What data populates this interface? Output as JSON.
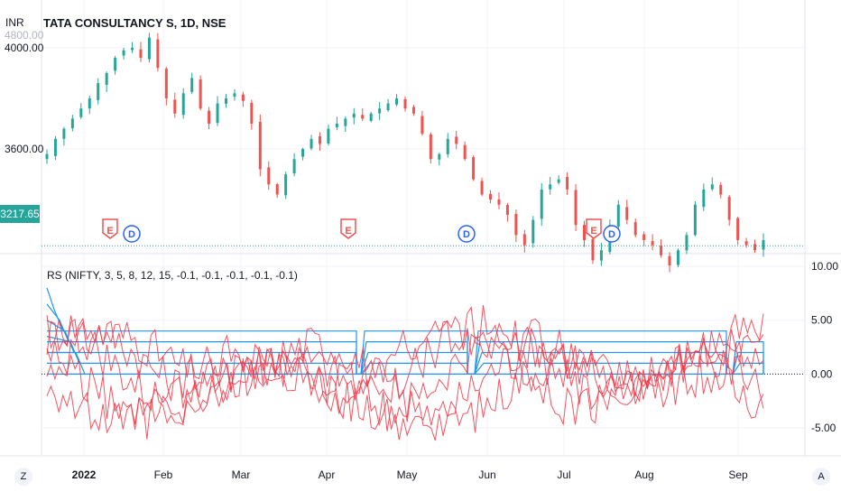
{
  "header": {
    "title": "TATA CONSULTANCY S, 1D, NSE",
    "currency": "INR",
    "last_price_tag": "3217.65",
    "indicator_title": "RS (NIFTY, 3, 5, 8, 12, 15, -0.1, -0.1, -0.1, -0.1, -0.1)"
  },
  "footer": {
    "left_button": "Z",
    "right_button": "A"
  },
  "colors": {
    "up": "#26a69a",
    "down": "#ef5350",
    "blue": "#2196f3",
    "red_line": "#f23645",
    "grid": "#f0f3fa",
    "text": "#131722",
    "sep": "#e0e3eb"
  },
  "chart_data": [
    {
      "type": "candlestick",
      "title": "TATA CONSULTANCY S, 1D, NSE",
      "ylabel": "INR",
      "ylim": [
        3190,
        4160
      ],
      "y_ticks": [
        "4000.00",
        "3600.00"
      ],
      "x_ticks": [
        "2022",
        "Feb",
        "Mar",
        "Apr",
        "May",
        "Jun",
        "Jul",
        "Aug",
        "Sep"
      ],
      "close_profile": [
        3580,
        3640,
        3680,
        3720,
        3760,
        3800,
        3860,
        3900,
        3960,
        3990,
        4000,
        3960,
        4040,
        3920,
        3800,
        3740,
        3820,
        3880,
        3760,
        3700,
        3780,
        3800,
        3820,
        3790,
        3700,
        3520,
        3460,
        3420,
        3500,
        3560,
        3600,
        3640,
        3620,
        3680,
        3700,
        3720,
        3740,
        3720,
        3740,
        3760,
        3780,
        3800,
        3760,
        3740,
        3660,
        3560,
        3580,
        3640,
        3620,
        3560,
        3480,
        3420,
        3400,
        3380,
        3340,
        3260,
        3220,
        3320,
        3440,
        3460,
        3480,
        3440,
        3300,
        3240,
        3160,
        3200,
        3300,
        3380,
        3320,
        3260,
        3240,
        3220,
        3180,
        3140,
        3200,
        3260,
        3380,
        3440,
        3460,
        3420,
        3320,
        3240,
        3220,
        3200,
        3240
      ],
      "last_price": 3217.65,
      "event_markers": [
        {
          "type": "E",
          "x": "Jan 27"
        },
        {
          "type": "D",
          "x": "Jan 31"
        },
        {
          "type": "E",
          "x": "Apr 11"
        },
        {
          "type": "D",
          "x": "May 26"
        },
        {
          "type": "E",
          "x": "Jul 08"
        },
        {
          "type": "D",
          "x": "Jul 15"
        }
      ]
    },
    {
      "type": "line",
      "title": "RS (NIFTY, 3, 5, 8, 12, 15, -0.1, -0.1, -0.1, -0.1, -0.1)",
      "ylim": [
        -7.6,
        11.1
      ],
      "y_ticks": [
        "10.00",
        "5.00",
        "0.00",
        "-5.00"
      ],
      "zero_line": 0,
      "blue_step_levels": [
        4,
        3,
        2,
        1,
        0
      ],
      "red_series_count": 5
    }
  ]
}
